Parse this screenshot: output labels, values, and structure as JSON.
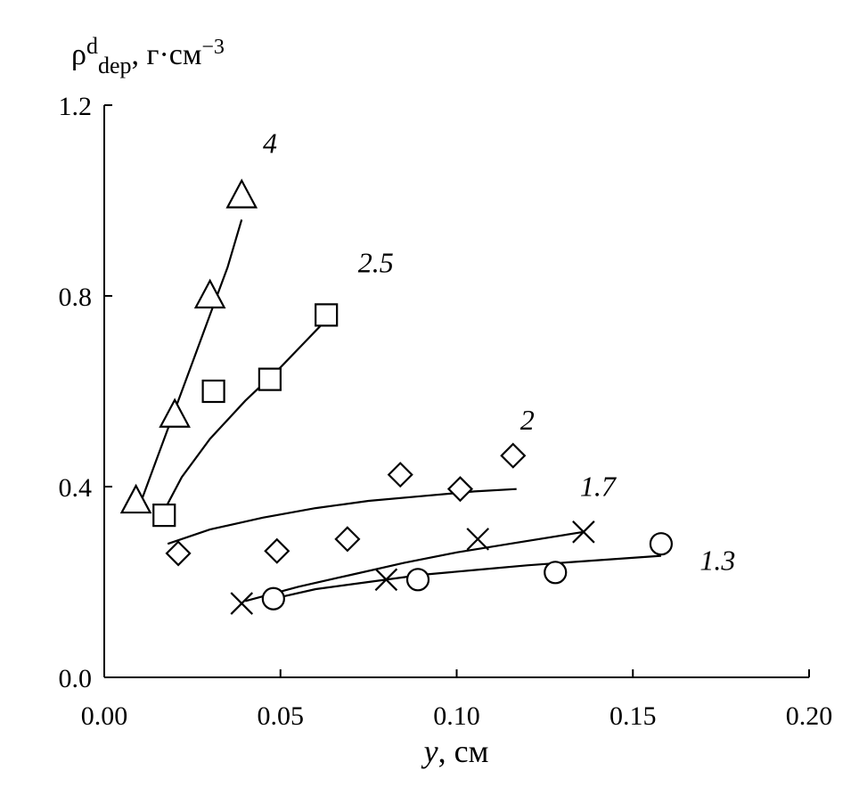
{
  "chart_data": {
    "type": "scatter",
    "xlabel": {
      "var": "y",
      "rest": ", см"
    },
    "ylabel": {
      "rho": "ρ",
      "sup": "d",
      "sub": "dep",
      "rest": ", г·см",
      "exp": "−3"
    },
    "xlim": [
      0.0,
      0.2
    ],
    "ylim": [
      0.0,
      1.2
    ],
    "xticks": [
      0.0,
      0.05,
      0.1,
      0.15,
      0.2
    ],
    "xtick_labels": [
      "0.00",
      "0.05",
      "0.10",
      "0.15",
      "0.20"
    ],
    "yticks": [
      0.0,
      0.4,
      0.8,
      1.2
    ],
    "ytick_labels": [
      "0.0",
      "0.4",
      "0.8",
      "1.2"
    ],
    "grid": false,
    "series": [
      {
        "name": "4",
        "marker": "triangle",
        "points": [
          [
            0.009,
            0.37
          ],
          [
            0.02,
            0.55
          ],
          [
            0.03,
            0.8
          ],
          [
            0.039,
            1.01
          ]
        ],
        "fit": [
          [
            0.01,
            0.36
          ],
          [
            0.015,
            0.46
          ],
          [
            0.02,
            0.56
          ],
          [
            0.025,
            0.66
          ],
          [
            0.03,
            0.76
          ],
          [
            0.035,
            0.86
          ],
          [
            0.039,
            0.96
          ]
        ],
        "label_at": [
          0.045,
          1.1
        ]
      },
      {
        "name": "2.5",
        "marker": "square",
        "points": [
          [
            0.017,
            0.34
          ],
          [
            0.031,
            0.6
          ],
          [
            0.047,
            0.625
          ],
          [
            0.063,
            0.76
          ]
        ],
        "fit": [
          [
            0.017,
            0.35
          ],
          [
            0.022,
            0.42
          ],
          [
            0.03,
            0.5
          ],
          [
            0.04,
            0.58
          ],
          [
            0.05,
            0.65
          ],
          [
            0.063,
            0.75
          ]
        ],
        "label_at": [
          0.072,
          0.85
        ]
      },
      {
        "name": "2",
        "marker": "diamond",
        "points": [
          [
            0.021,
            0.26
          ],
          [
            0.049,
            0.265
          ],
          [
            0.069,
            0.29
          ],
          [
            0.084,
            0.425
          ],
          [
            0.101,
            0.395
          ],
          [
            0.116,
            0.465
          ]
        ],
        "fit": [
          [
            0.018,
            0.28
          ],
          [
            0.03,
            0.31
          ],
          [
            0.045,
            0.335
          ],
          [
            0.06,
            0.355
          ],
          [
            0.075,
            0.37
          ],
          [
            0.09,
            0.38
          ],
          [
            0.105,
            0.39
          ],
          [
            0.117,
            0.395
          ]
        ],
        "label_at": [
          0.118,
          0.52
        ]
      },
      {
        "name": "1.7",
        "marker": "cross",
        "points": [
          [
            0.039,
            0.155
          ],
          [
            0.08,
            0.205
          ],
          [
            0.106,
            0.29
          ],
          [
            0.136,
            0.305
          ]
        ],
        "fit": [
          [
            0.04,
            0.16
          ],
          [
            0.055,
            0.19
          ],
          [
            0.07,
            0.215
          ],
          [
            0.085,
            0.24
          ],
          [
            0.1,
            0.262
          ],
          [
            0.115,
            0.28
          ],
          [
            0.136,
            0.305
          ]
        ],
        "label_at": [
          0.135,
          0.38
        ]
      },
      {
        "name": "1.3",
        "marker": "circle",
        "points": [
          [
            0.048,
            0.165
          ],
          [
            0.089,
            0.205
          ],
          [
            0.128,
            0.22
          ],
          [
            0.158,
            0.28
          ]
        ],
        "fit": [
          [
            0.048,
            0.165
          ],
          [
            0.06,
            0.185
          ],
          [
            0.075,
            0.2
          ],
          [
            0.09,
            0.215
          ],
          [
            0.105,
            0.225
          ],
          [
            0.12,
            0.235
          ],
          [
            0.135,
            0.243
          ],
          [
            0.158,
            0.255
          ]
        ],
        "label_at": [
          0.169,
          0.225
        ]
      }
    ]
  }
}
